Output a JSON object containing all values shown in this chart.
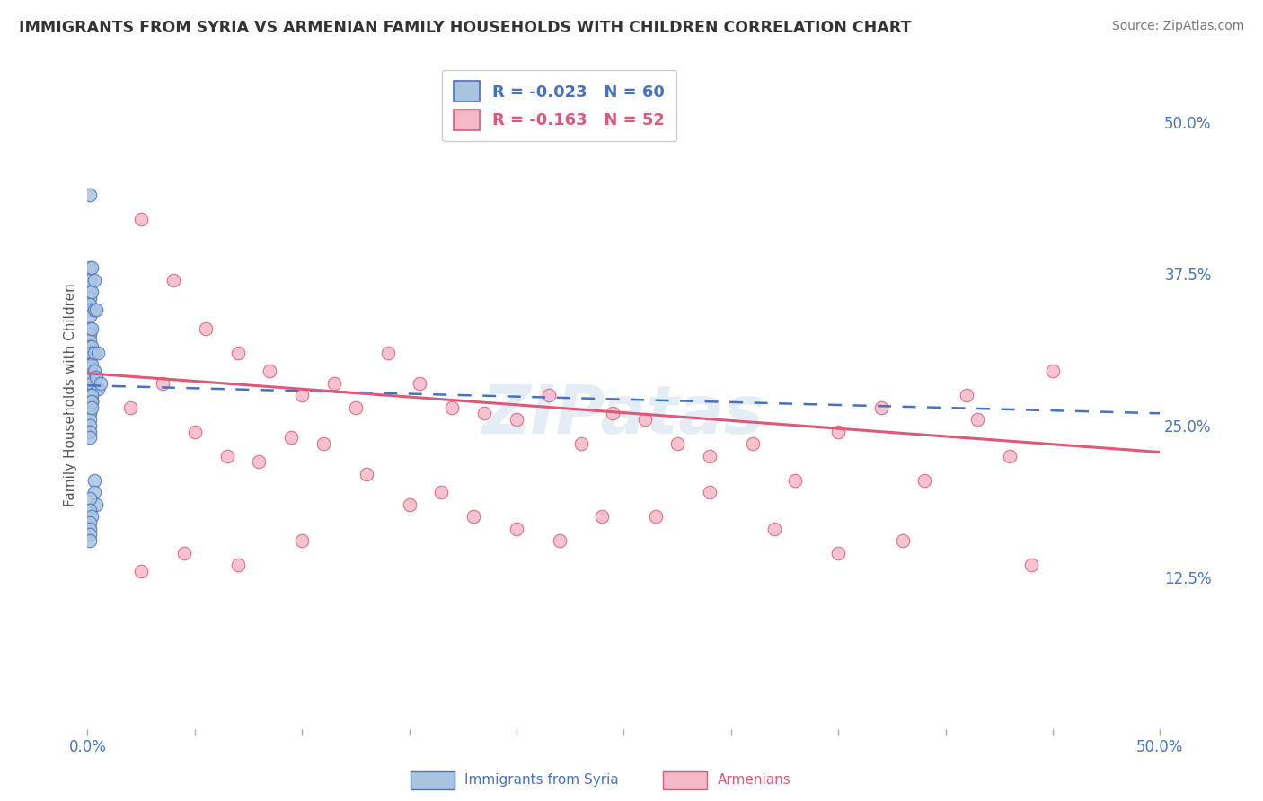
{
  "title": "IMMIGRANTS FROM SYRIA VS ARMENIAN FAMILY HOUSEHOLDS WITH CHILDREN CORRELATION CHART",
  "source": "Source: ZipAtlas.com",
  "ylabel": "Family Households with Children",
  "xlabel_legend1": "Immigrants from Syria",
  "xlabel_legend2": "Armenians",
  "R_syria": -0.023,
  "N_syria": 60,
  "R_armenian": -0.163,
  "N_armenian": 52,
  "xlim": [
    0.0,
    0.5
  ],
  "ylim": [
    0.0,
    0.55
  ],
  "ytick_vals": [
    0.125,
    0.25,
    0.375,
    0.5
  ],
  "ytick_labels": [
    "12.5%",
    "25.0%",
    "37.5%",
    "50.0%"
  ],
  "color_syria": "#a8c4e0",
  "color_armenian": "#f4b8c8",
  "color_line_syria": "#4472c4",
  "color_line_armenian": "#e05878",
  "color_ticks": "#4472c4",
  "background_color": "#ffffff",
  "grid_color": "#cccccc",
  "syria_line_start": 0.283,
  "syria_line_end": 0.26,
  "armenian_line_start": 0.293,
  "armenian_line_end": 0.228,
  "syria_x": [
    0.001,
    0.001,
    0.001,
    0.001,
    0.001,
    0.001,
    0.001,
    0.001,
    0.001,
    0.001,
    0.001,
    0.001,
    0.001,
    0.001,
    0.001,
    0.001,
    0.001,
    0.001,
    0.001,
    0.001,
    0.002,
    0.002,
    0.002,
    0.002,
    0.002,
    0.002,
    0.002,
    0.002,
    0.002,
    0.002,
    0.003,
    0.003,
    0.003,
    0.003,
    0.004,
    0.004,
    0.005,
    0.005,
    0.006,
    0.001,
    0.001,
    0.001,
    0.001,
    0.001,
    0.001,
    0.001,
    0.001,
    0.002,
    0.002,
    0.002,
    0.003,
    0.003,
    0.004,
    0.001,
    0.001,
    0.002,
    0.001,
    0.001,
    0.001,
    0.001
  ],
  "syria_y": [
    0.44,
    0.38,
    0.37,
    0.36,
    0.355,
    0.35,
    0.345,
    0.34,
    0.33,
    0.325,
    0.32,
    0.315,
    0.31,
    0.305,
    0.3,
    0.298,
    0.295,
    0.29,
    0.285,
    0.28,
    0.38,
    0.36,
    0.33,
    0.315,
    0.31,
    0.3,
    0.29,
    0.285,
    0.275,
    0.27,
    0.37,
    0.345,
    0.31,
    0.295,
    0.345,
    0.29,
    0.31,
    0.28,
    0.285,
    0.275,
    0.27,
    0.265,
    0.26,
    0.255,
    0.25,
    0.245,
    0.24,
    0.275,
    0.27,
    0.265,
    0.205,
    0.195,
    0.185,
    0.19,
    0.18,
    0.175,
    0.17,
    0.165,
    0.16,
    0.155
  ],
  "armenian_x": [
    0.025,
    0.04,
    0.055,
    0.07,
    0.085,
    0.1,
    0.115,
    0.125,
    0.14,
    0.155,
    0.17,
    0.185,
    0.2,
    0.215,
    0.23,
    0.245,
    0.26,
    0.275,
    0.29,
    0.31,
    0.33,
    0.35,
    0.37,
    0.39,
    0.41,
    0.43,
    0.45,
    0.02,
    0.035,
    0.05,
    0.065,
    0.08,
    0.095,
    0.11,
    0.13,
    0.15,
    0.165,
    0.18,
    0.2,
    0.22,
    0.24,
    0.265,
    0.29,
    0.32,
    0.35,
    0.38,
    0.415,
    0.44,
    0.025,
    0.045,
    0.07,
    0.1
  ],
  "armenian_y": [
    0.42,
    0.37,
    0.33,
    0.31,
    0.295,
    0.275,
    0.285,
    0.265,
    0.31,
    0.285,
    0.265,
    0.26,
    0.255,
    0.275,
    0.235,
    0.26,
    0.255,
    0.235,
    0.225,
    0.235,
    0.205,
    0.245,
    0.265,
    0.205,
    0.275,
    0.225,
    0.295,
    0.265,
    0.285,
    0.245,
    0.225,
    0.22,
    0.24,
    0.235,
    0.21,
    0.185,
    0.195,
    0.175,
    0.165,
    0.155,
    0.175,
    0.175,
    0.195,
    0.165,
    0.145,
    0.155,
    0.255,
    0.135,
    0.13,
    0.145,
    0.135,
    0.155
  ]
}
